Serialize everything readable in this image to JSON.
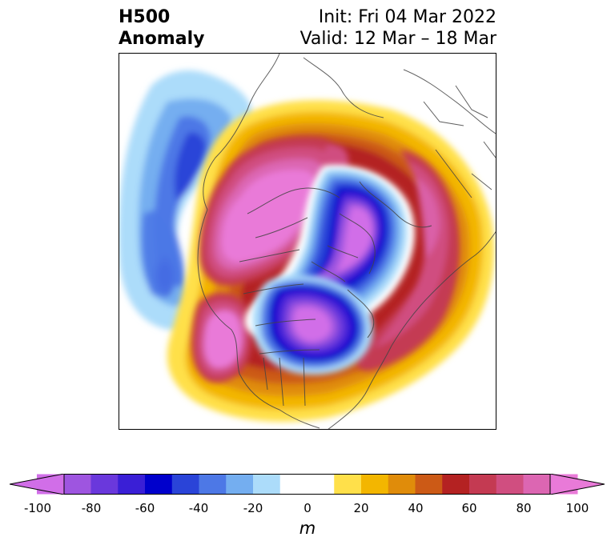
{
  "header": {
    "title_line1": "H500",
    "title_line2": "Anomaly",
    "init_text": "Init: Fri 04 Mar 2022",
    "valid_text": "Valid: 12 Mar – 18 Mar"
  },
  "map": {
    "projection": "north-polar-stereographic",
    "field": "500 hPa geopotential height anomaly",
    "features": [
      {
        "name": "negative-anomaly-north-pacific",
        "sign": "negative",
        "peak_m": -60
      },
      {
        "name": "positive-anomaly-alaska-canada",
        "sign": "positive",
        "peak_m": 100
      },
      {
        "name": "positive-anomaly-western-us",
        "sign": "positive",
        "peak_m": 100
      },
      {
        "name": "negative-anomaly-eastern-canada-us",
        "sign": "negative",
        "peak_m": -100
      },
      {
        "name": "negative-anomaly-polar-siberia",
        "sign": "negative",
        "peak_m": -100
      },
      {
        "name": "positive-anomaly-north-atlantic-europe",
        "sign": "positive",
        "peak_m": 80
      }
    ]
  },
  "colorbar": {
    "unit": "m",
    "tick_labels": [
      "-100",
      "-80",
      "-60",
      "-40",
      "-20",
      "0",
      "20",
      "40",
      "60",
      "80",
      "100"
    ],
    "levels": [
      -100,
      -90,
      -80,
      -70,
      -60,
      -50,
      -40,
      -30,
      -20,
      -10,
      10,
      20,
      30,
      40,
      50,
      60,
      70,
      80,
      90,
      100
    ],
    "colors": [
      "#d16ee8",
      "#9e55e0",
      "#6a38dc",
      "#3a1fd6",
      "#0000cc",
      "#2a44d8",
      "#4d78e6",
      "#74aef0",
      "#acdcfa",
      "#ffffff",
      "#ffe04a",
      "#f3b600",
      "#e08c0a",
      "#cc5a16",
      "#b42222",
      "#c43a52",
      "#d04e80",
      "#dc66b2",
      "#e97ad8"
    ],
    "extend_low_color": "#d16ee8",
    "extend_high_color": "#e97ad8"
  }
}
